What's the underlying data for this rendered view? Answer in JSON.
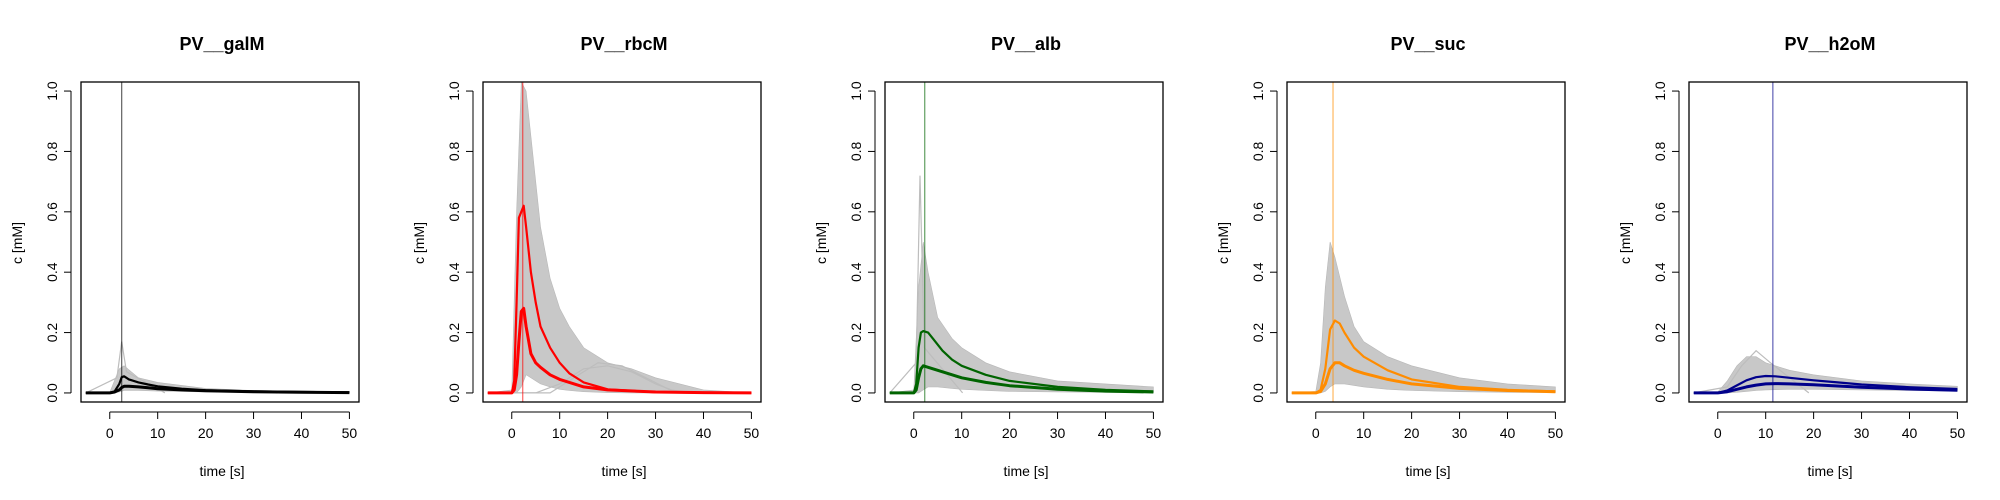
{
  "chart_data": [
    {
      "type": "line",
      "title": "PV__galM",
      "xlabel": "time [s]",
      "ylabel": "c [mM]",
      "xlim": [
        -6,
        52
      ],
      "ylim": [
        -0.03,
        1.03
      ],
      "xticks": [
        "0",
        "10",
        "20",
        "30",
        "40",
        "50"
      ],
      "yticks": [
        "0.0",
        "0.2",
        "0.4",
        "0.6",
        "0.8",
        "1.0"
      ],
      "color": "#000000",
      "vline_x": 2.5,
      "series": [
        {
          "role": "mean",
          "x": [
            -5,
            0,
            1,
            2,
            2.5,
            3,
            4,
            6,
            8,
            10,
            15,
            20,
            30,
            40,
            50
          ],
          "y": [
            0,
            0,
            0.003,
            0.01,
            0.018,
            0.022,
            0.022,
            0.02,
            0.017,
            0.014,
            0.01,
            0.007,
            0.004,
            0.002,
            0.001
          ]
        },
        {
          "role": "upper",
          "x": [
            -5,
            0,
            1,
            2,
            2.5,
            3,
            4,
            6,
            8,
            10,
            15,
            20,
            30,
            40,
            50
          ],
          "y": [
            0,
            0,
            0.005,
            0.03,
            0.052,
            0.055,
            0.045,
            0.035,
            0.028,
            0.022,
            0.014,
            0.009,
            0.005,
            0.003,
            0.002
          ]
        },
        {
          "role": "band",
          "x": [
            -5,
            0,
            2,
            3,
            6,
            10,
            20,
            30,
            50
          ],
          "lo": [
            0,
            0,
            0.003,
            0.008,
            0.008,
            0.006,
            0.003,
            0.002,
            0.001
          ],
          "hi": [
            0,
            0.002,
            0.08,
            0.09,
            0.05,
            0.035,
            0.015,
            0.008,
            0.004
          ]
        },
        {
          "role": "peak",
          "x": [
            1.5,
            2.5,
            3.5
          ],
          "y": [
            0.05,
            0.17,
            0.07
          ]
        }
      ]
    },
    {
      "type": "line",
      "title": "PV__rbcM",
      "xlabel": "time [s]",
      "ylabel": "c [mM]",
      "xlim": [
        -6,
        52
      ],
      "ylim": [
        -0.03,
        1.03
      ],
      "xticks": [
        "0",
        "10",
        "20",
        "30",
        "40",
        "50"
      ],
      "yticks": [
        "0.0",
        "0.2",
        "0.4",
        "0.6",
        "0.8",
        "1.0"
      ],
      "color": "#ff0000",
      "vline_x": 2.3,
      "series": [
        {
          "role": "mean",
          "x": [
            -5,
            0,
            0.5,
            1,
            1.5,
            2,
            2.5,
            3,
            4,
            5,
            6,
            8,
            10,
            15,
            20,
            30,
            40,
            50
          ],
          "y": [
            0,
            0,
            0.01,
            0.06,
            0.17,
            0.27,
            0.28,
            0.22,
            0.13,
            0.1,
            0.085,
            0.06,
            0.045,
            0.02,
            0.01,
            0.003,
            0.001,
            0
          ]
        },
        {
          "role": "upper",
          "x": [
            -5,
            0,
            0.5,
            1,
            1.5,
            2,
            2.5,
            3,
            4,
            5,
            6,
            8,
            10,
            12,
            15,
            20,
            30,
            50
          ],
          "y": [
            0,
            0,
            0.04,
            0.3,
            0.58,
            0.6,
            0.62,
            0.55,
            0.4,
            0.3,
            0.22,
            0.15,
            0.1,
            0.065,
            0.035,
            0.012,
            0.002,
            0
          ]
        },
        {
          "role": "band",
          "x": [
            -5,
            0,
            1,
            2,
            3,
            4,
            6,
            8,
            10,
            12,
            15,
            20,
            25,
            30,
            40,
            50
          ],
          "lo": [
            0,
            0,
            0,
            0.02,
            0.06,
            0.05,
            0.03,
            0.02,
            0.012,
            0.008,
            0.004,
            0.001,
            0,
            0,
            0,
            0
          ],
          "hi": [
            0,
            0.01,
            0.6,
            1.03,
            1.0,
            0.85,
            0.55,
            0.38,
            0.28,
            0.22,
            0.15,
            0.1,
            0.08,
            0.05,
            0.01,
            0
          ]
        },
        {
          "role": "late",
          "x": [
            5,
            10,
            15,
            20,
            25,
            30,
            35
          ],
          "y": [
            0,
            0.03,
            0.08,
            0.09,
            0.07,
            0.03,
            0
          ]
        },
        {
          "role": "late",
          "x": [
            8,
            13,
            18,
            23,
            28,
            33,
            38
          ],
          "y": [
            0,
            0.05,
            0.1,
            0.09,
            0.05,
            0.01,
            0
          ]
        }
      ]
    },
    {
      "type": "line",
      "title": "PV__alb",
      "xlabel": "time [s]",
      "ylabel": "c [mM]",
      "xlim": [
        -6,
        52
      ],
      "ylim": [
        -0.03,
        1.03
      ],
      "xticks": [
        "0",
        "10",
        "20",
        "30",
        "40",
        "50"
      ],
      "yticks": [
        "0.0",
        "0.2",
        "0.4",
        "0.6",
        "0.8",
        "1.0"
      ],
      "color": "#006400",
      "vline_x": 2.3,
      "series": [
        {
          "role": "mean",
          "x": [
            -5,
            0,
            0.5,
            1,
            1.5,
            2,
            3,
            4,
            6,
            8,
            10,
            15,
            20,
            30,
            40,
            50
          ],
          "y": [
            0,
            0,
            0.01,
            0.05,
            0.08,
            0.09,
            0.085,
            0.08,
            0.07,
            0.06,
            0.05,
            0.035,
            0.024,
            0.012,
            0.006,
            0.003
          ]
        },
        {
          "role": "upper",
          "x": [
            -5,
            0,
            0.5,
            1,
            1.5,
            2,
            3,
            4,
            6,
            8,
            10,
            15,
            20,
            30,
            40,
            50
          ],
          "y": [
            0,
            0,
            0.03,
            0.15,
            0.2,
            0.205,
            0.2,
            0.18,
            0.14,
            0.11,
            0.09,
            0.06,
            0.04,
            0.02,
            0.01,
            0.005
          ]
        },
        {
          "role": "band",
          "x": [
            -5,
            0,
            1,
            2,
            3,
            5,
            8,
            10,
            15,
            20,
            30,
            40,
            50
          ],
          "lo": [
            0,
            0,
            0,
            0.01,
            0.02,
            0.02,
            0.015,
            0.012,
            0.008,
            0.005,
            0.003,
            0.002,
            0.001
          ],
          "hi": [
            0,
            0.01,
            0.35,
            0.5,
            0.4,
            0.25,
            0.18,
            0.15,
            0.1,
            0.07,
            0.04,
            0.03,
            0.02
          ]
        },
        {
          "role": "peak",
          "x": [
            0.5,
            1.3,
            2.2
          ],
          "y": [
            0.1,
            0.72,
            0.15
          ]
        }
      ]
    },
    {
      "type": "line",
      "title": "PV__suc",
      "xlabel": "time [s]",
      "ylabel": "c [mM]",
      "xlim": [
        -6,
        52
      ],
      "ylim": [
        -0.03,
        1.03
      ],
      "xticks": [
        "0",
        "10",
        "20",
        "30",
        "40",
        "50"
      ],
      "yticks": [
        "0.0",
        "0.2",
        "0.4",
        "0.6",
        "0.8",
        "1.0"
      ],
      "color": "#ff8c00",
      "vline_x": 3.6,
      "series": [
        {
          "role": "mean",
          "x": [
            -5,
            0,
            1,
            2,
            3,
            4,
            5,
            6,
            8,
            10,
            15,
            20,
            30,
            40,
            50
          ],
          "y": [
            0,
            0,
            0.005,
            0.03,
            0.08,
            0.1,
            0.1,
            0.09,
            0.075,
            0.065,
            0.045,
            0.03,
            0.015,
            0.008,
            0.004
          ]
        },
        {
          "role": "upper",
          "x": [
            -5,
            0,
            1,
            2,
            3,
            4,
            5,
            6,
            8,
            10,
            15,
            20,
            30,
            40,
            50
          ],
          "y": [
            0,
            0,
            0.01,
            0.08,
            0.21,
            0.24,
            0.23,
            0.2,
            0.15,
            0.12,
            0.075,
            0.045,
            0.02,
            0.01,
            0.005
          ]
        },
        {
          "role": "band",
          "x": [
            -5,
            0,
            1,
            2,
            3,
            4,
            6,
            8,
            10,
            15,
            20,
            30,
            40,
            50
          ],
          "lo": [
            0,
            0,
            0,
            0.005,
            0.02,
            0.03,
            0.03,
            0.025,
            0.02,
            0.012,
            0.008,
            0.004,
            0.002,
            0.001
          ],
          "hi": [
            0,
            0.005,
            0.1,
            0.35,
            0.5,
            0.45,
            0.32,
            0.22,
            0.17,
            0.12,
            0.09,
            0.05,
            0.03,
            0.02
          ]
        }
      ]
    },
    {
      "type": "line",
      "title": "PV__h2oM",
      "xlabel": "time [s]",
      "ylabel": "c [mM]",
      "xlim": [
        -6,
        52
      ],
      "ylim": [
        -0.03,
        1.03
      ],
      "xticks": [
        "0",
        "10",
        "20",
        "30",
        "40",
        "50"
      ],
      "yticks": [
        "0.0",
        "0.2",
        "0.4",
        "0.6",
        "0.8",
        "1.0"
      ],
      "color": "#00008b",
      "vline_x": 11.5,
      "series": [
        {
          "role": "mean",
          "x": [
            -5,
            0,
            2,
            4,
            6,
            8,
            10,
            12,
            15,
            20,
            25,
            30,
            40,
            50
          ],
          "y": [
            0,
            0,
            0.004,
            0.012,
            0.02,
            0.026,
            0.03,
            0.031,
            0.03,
            0.027,
            0.023,
            0.019,
            0.013,
            0.009
          ]
        },
        {
          "role": "upper",
          "x": [
            -5,
            0,
            2,
            4,
            6,
            8,
            10,
            12,
            15,
            20,
            25,
            30,
            40,
            50
          ],
          "y": [
            0,
            0,
            0.008,
            0.025,
            0.042,
            0.052,
            0.056,
            0.055,
            0.05,
            0.042,
            0.035,
            0.028,
            0.019,
            0.013
          ]
        },
        {
          "role": "band",
          "x": [
            -5,
            0,
            2,
            4,
            6,
            8,
            10,
            15,
            20,
            30,
            40,
            50
          ],
          "lo": [
            0,
            0,
            0,
            0.002,
            0.005,
            0.008,
            0.01,
            0.012,
            0.012,
            0.01,
            0.008,
            0.006
          ],
          "hi": [
            0,
            0.003,
            0.04,
            0.09,
            0.12,
            0.12,
            0.1,
            0.075,
            0.06,
            0.04,
            0.03,
            0.022
          ]
        },
        {
          "role": "peak",
          "x": [
            2,
            5,
            8,
            11
          ],
          "y": [
            0.02,
            0.09,
            0.14,
            0.1
          ]
        }
      ]
    }
  ]
}
